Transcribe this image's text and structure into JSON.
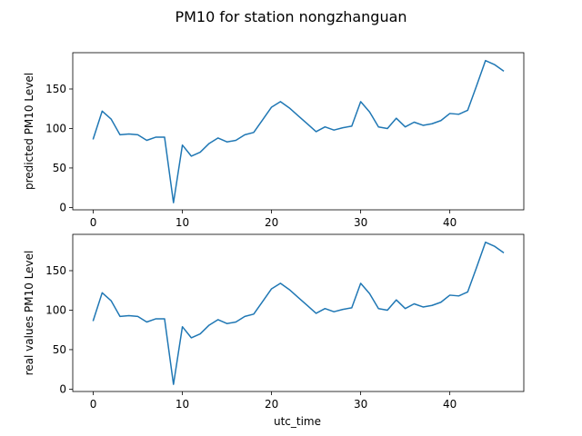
{
  "chart_data": {
    "title": "PM10 for station nongzhanguan",
    "type": "line",
    "xlabel": "utc_time",
    "color": "#1f77b4",
    "xlim": [
      -2.3,
      48.3
    ],
    "x_ticks": [
      0,
      10,
      20,
      30,
      40
    ],
    "x": [
      0,
      1,
      2,
      3,
      4,
      5,
      6,
      7,
      8,
      9,
      10,
      11,
      12,
      13,
      14,
      15,
      16,
      17,
      18,
      19,
      20,
      21,
      22,
      23,
      24,
      25,
      26,
      27,
      28,
      29,
      30,
      31,
      32,
      33,
      34,
      35,
      36,
      37,
      38,
      39,
      40,
      41,
      42,
      43,
      44,
      45,
      46
    ],
    "subplots": [
      {
        "ylabel": "predicted PM10 Level",
        "ylim": [
          -3,
          196
        ],
        "y_ticks": [
          0,
          50,
          100,
          150
        ],
        "values": [
          87,
          122,
          112,
          92,
          93,
          92,
          85,
          89,
          89,
          6,
          79,
          65,
          70,
          81,
          88,
          83,
          85,
          92,
          95,
          111,
          127,
          134,
          126,
          116,
          106,
          96,
          102,
          98,
          101,
          103,
          134,
          121,
          102,
          100,
          113,
          102,
          108,
          104,
          106,
          110,
          119,
          118,
          123,
          154,
          186,
          181,
          173
        ]
      },
      {
        "ylabel": "real values PM10 Level",
        "ylim": [
          -3,
          196
        ],
        "y_ticks": [
          0,
          50,
          100,
          150
        ],
        "values": [
          87,
          122,
          112,
          92,
          93,
          92,
          85,
          89,
          89,
          6,
          79,
          65,
          70,
          81,
          88,
          83,
          85,
          92,
          95,
          111,
          127,
          134,
          126,
          116,
          106,
          96,
          102,
          98,
          101,
          103,
          134,
          121,
          102,
          100,
          113,
          102,
          108,
          104,
          106,
          110,
          119,
          118,
          123,
          154,
          186,
          181,
          173
        ]
      }
    ]
  }
}
